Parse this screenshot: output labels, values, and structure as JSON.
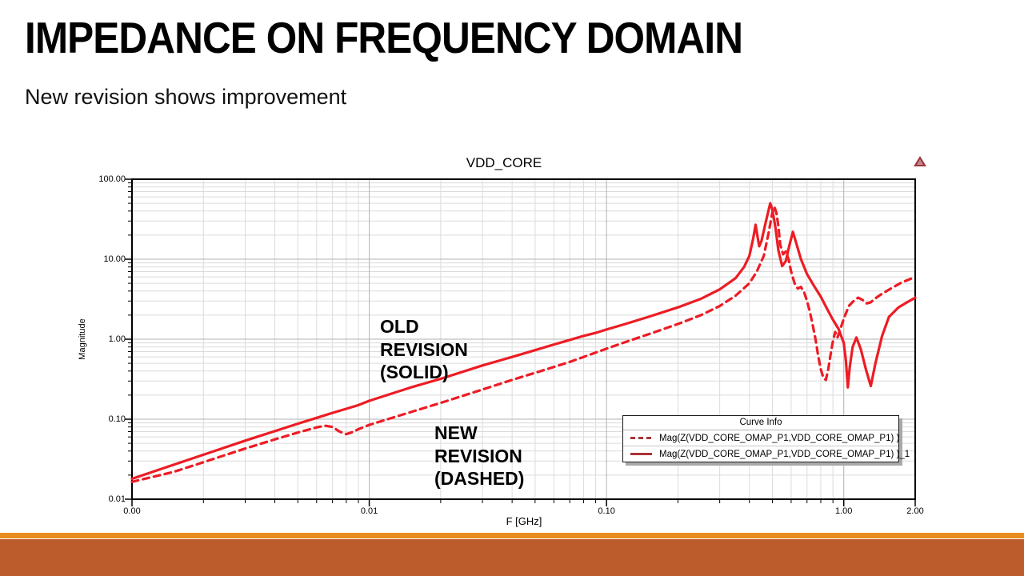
{
  "slide": {
    "title": "IMPEDANCE ON FREQUENCY DOMAIN",
    "subtitle": "New revision shows improvement"
  },
  "chart": {
    "title": "VDD_CORE",
    "x_axis_label": "F [GHz]",
    "y_axis_label": "Magnitude",
    "legend": {
      "header": "Curve Info",
      "entries": [
        {
          "label": "Mag(Z(VDD_CORE_OMAP_P1,VDD_CORE_OMAP_P1) )",
          "style": "dashed"
        },
        {
          "label": "Mag(Z(VDD_CORE_OMAP_P1,VDD_CORE_OMAP_P1) )_1",
          "style": "solid"
        }
      ]
    },
    "annotations": {
      "old": {
        "line1": "OLD",
        "line2": "REVISION",
        "line3": "(SOLID)"
      },
      "new": {
        "line1": "NEW",
        "line2": "REVISION",
        "line3": "(DASHED)"
      }
    }
  },
  "colors": {
    "curve_red": "#ed1c24",
    "legend_swatch_red": "#a93438",
    "grid_minor": "#dcdcdc",
    "grid_major": "#b2b2b2",
    "axis": "#000000",
    "bar_orange": "#e78c1e",
    "bar_rust": "#bc5b2b",
    "logo_maroon": "#9a3b40"
  },
  "chart_data": {
    "type": "line",
    "title": "VDD_CORE",
    "xlabel": "F [GHz]",
    "ylabel": "Magnitude",
    "x_scale": "log",
    "y_scale": "log",
    "xlim": [
      0.001,
      2.0
    ],
    "ylim": [
      0.01,
      100
    ],
    "grid": true,
    "legend_position": "lower-right-inside",
    "x_ticks": [
      {
        "label": "0.00",
        "value": 0.001
      },
      {
        "label": "0.01",
        "value": 0.01
      },
      {
        "label": "0.10",
        "value": 0.1
      },
      {
        "label": "1.00",
        "value": 1.0
      },
      {
        "label": "2.00",
        "value": 2.0
      }
    ],
    "y_ticks": [
      {
        "label": "100.00",
        "value": 100
      },
      {
        "label": "10.00",
        "value": 10
      },
      {
        "label": "1.00",
        "value": 1
      },
      {
        "label": "0.10",
        "value": 0.1
      },
      {
        "label": "0.01",
        "value": 0.01
      }
    ],
    "series": [
      {
        "name": "Mag(Z(VDD_CORE_OMAP_P1,VDD_CORE_OMAP_P1) )",
        "meaning": "NEW REVISION (DASHED)",
        "line_style": "dashed",
        "color": "#ed1c24",
        "points": [
          [
            0.001,
            0.0165
          ],
          [
            0.0015,
            0.022
          ],
          [
            0.002,
            0.029
          ],
          [
            0.003,
            0.043
          ],
          [
            0.004,
            0.056
          ],
          [
            0.005,
            0.068
          ],
          [
            0.006,
            0.079
          ],
          [
            0.0065,
            0.083
          ],
          [
            0.007,
            0.08
          ],
          [
            0.0075,
            0.07
          ],
          [
            0.008,
            0.065
          ],
          [
            0.0085,
            0.069
          ],
          [
            0.009,
            0.075
          ],
          [
            0.01,
            0.085
          ],
          [
            0.015,
            0.123
          ],
          [
            0.02,
            0.16
          ],
          [
            0.03,
            0.235
          ],
          [
            0.04,
            0.31
          ],
          [
            0.05,
            0.38
          ],
          [
            0.06,
            0.45
          ],
          [
            0.07,
            0.52
          ],
          [
            0.08,
            0.6
          ],
          [
            0.09,
            0.68
          ],
          [
            0.1,
            0.76
          ],
          [
            0.12,
            0.92
          ],
          [
            0.15,
            1.15
          ],
          [
            0.2,
            1.55
          ],
          [
            0.25,
            2.0
          ],
          [
            0.3,
            2.6
          ],
          [
            0.35,
            3.5
          ],
          [
            0.4,
            5.0
          ],
          [
            0.43,
            7.0
          ],
          [
            0.46,
            11
          ],
          [
            0.48,
            20
          ],
          [
            0.5,
            38
          ],
          [
            0.51,
            45
          ],
          [
            0.52,
            38
          ],
          [
            0.53,
            26
          ],
          [
            0.54,
            15
          ],
          [
            0.555,
            11.5
          ],
          [
            0.57,
            12.5
          ],
          [
            0.585,
            10
          ],
          [
            0.6,
            7
          ],
          [
            0.62,
            5
          ],
          [
            0.64,
            4.3
          ],
          [
            0.66,
            4.5
          ],
          [
            0.68,
            3.9
          ],
          [
            0.7,
            3.0
          ],
          [
            0.72,
            2.2
          ],
          [
            0.74,
            1.5
          ],
          [
            0.76,
            1.0
          ],
          [
            0.78,
            0.62
          ],
          [
            0.8,
            0.42
          ],
          [
            0.82,
            0.33
          ],
          [
            0.84,
            0.31
          ],
          [
            0.86,
            0.42
          ],
          [
            0.88,
            0.65
          ],
          [
            0.9,
            0.95
          ],
          [
            0.92,
            1.23
          ],
          [
            0.94,
            1.05
          ],
          [
            0.96,
            1.25
          ],
          [
            1.0,
            1.8
          ],
          [
            1.05,
            2.6
          ],
          [
            1.1,
            3.0
          ],
          [
            1.15,
            3.3
          ],
          [
            1.2,
            3.1
          ],
          [
            1.25,
            2.8
          ],
          [
            1.3,
            2.9
          ],
          [
            1.35,
            3.2
          ],
          [
            1.45,
            3.7
          ],
          [
            1.6,
            4.4
          ],
          [
            1.75,
            5.1
          ],
          [
            2.0,
            6.0
          ]
        ]
      },
      {
        "name": "Mag(Z(VDD_CORE_OMAP_P1,VDD_CORE_OMAP_P1) )_1",
        "meaning": "OLD REVISION (SOLID)",
        "line_style": "solid",
        "color": "#ed1c24",
        "points": [
          [
            0.001,
            0.018
          ],
          [
            0.0015,
            0.027
          ],
          [
            0.002,
            0.036
          ],
          [
            0.003,
            0.054
          ],
          [
            0.004,
            0.071
          ],
          [
            0.005,
            0.088
          ],
          [
            0.006,
            0.104
          ],
          [
            0.007,
            0.12
          ],
          [
            0.008,
            0.135
          ],
          [
            0.009,
            0.15
          ],
          [
            0.01,
            0.17
          ],
          [
            0.015,
            0.25
          ],
          [
            0.02,
            0.32
          ],
          [
            0.03,
            0.47
          ],
          [
            0.04,
            0.6
          ],
          [
            0.05,
            0.73
          ],
          [
            0.06,
            0.86
          ],
          [
            0.07,
            0.98
          ],
          [
            0.08,
            1.1
          ],
          [
            0.09,
            1.2
          ],
          [
            0.1,
            1.32
          ],
          [
            0.12,
            1.55
          ],
          [
            0.15,
            1.9
          ],
          [
            0.2,
            2.5
          ],
          [
            0.25,
            3.2
          ],
          [
            0.3,
            4.2
          ],
          [
            0.35,
            5.8
          ],
          [
            0.38,
            8
          ],
          [
            0.4,
            11
          ],
          [
            0.415,
            18
          ],
          [
            0.425,
            27
          ],
          [
            0.432,
            20
          ],
          [
            0.44,
            14.5
          ],
          [
            0.45,
            17
          ],
          [
            0.47,
            30
          ],
          [
            0.49,
            50
          ],
          [
            0.5,
            42
          ],
          [
            0.515,
            25
          ],
          [
            0.53,
            13
          ],
          [
            0.55,
            8.2
          ],
          [
            0.57,
            9.5
          ],
          [
            0.59,
            15
          ],
          [
            0.61,
            22
          ],
          [
            0.63,
            16
          ],
          [
            0.66,
            10
          ],
          [
            0.7,
            6.5
          ],
          [
            0.75,
            4.6
          ],
          [
            0.8,
            3.4
          ],
          [
            0.85,
            2.4
          ],
          [
            0.9,
            1.75
          ],
          [
            0.95,
            1.35
          ],
          [
            1.0,
            0.9
          ],
          [
            1.02,
            0.55
          ],
          [
            1.04,
            0.25
          ],
          [
            1.06,
            0.45
          ],
          [
            1.09,
            0.8
          ],
          [
            1.13,
            1.05
          ],
          [
            1.18,
            0.75
          ],
          [
            1.24,
            0.42
          ],
          [
            1.3,
            0.26
          ],
          [
            1.36,
            0.5
          ],
          [
            1.45,
            1.1
          ],
          [
            1.55,
            1.9
          ],
          [
            1.7,
            2.5
          ],
          [
            1.85,
            2.9
          ],
          [
            2.0,
            3.3
          ]
        ]
      }
    ]
  }
}
